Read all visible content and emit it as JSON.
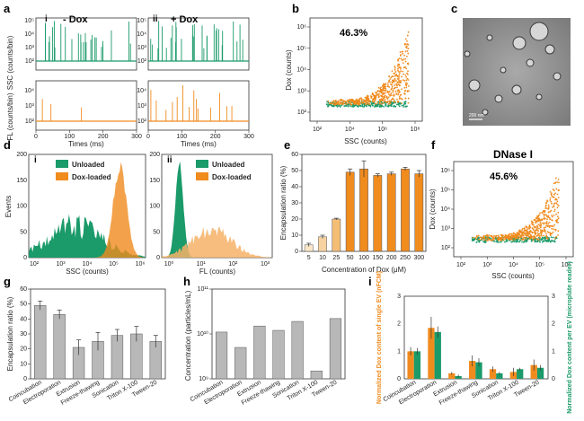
{
  "colors": {
    "green": "#1b9a6a",
    "orange": "#f08b1e",
    "lightorange": "#f6c98c",
    "gray": "#b8b8b8",
    "orange_text": "#f08b1e",
    "green_text": "#1b9a6a"
  },
  "panels": {
    "a": {
      "label": "a",
      "sub_i": "i",
      "sub_ii": "ii",
      "cond_i": "- Dox",
      "cond_ii": "+ Dox",
      "ylabel_top": "SSC (counts/bin)",
      "ylabel_bottom": "FL (counts/bin)",
      "xlabel": "Times (ms)",
      "xticks": [
        "0",
        "100",
        "200",
        "300"
      ],
      "yticks_top": [
        "10²",
        "10³",
        "10⁴",
        "10⁵"
      ],
      "yticks_bottom": [
        "10²",
        "10³",
        "10⁴"
      ]
    },
    "b": {
      "label": "b",
      "percent": "46.3%",
      "xlabel": "SSC (counts)",
      "ylabel": "Dox (counts)",
      "xticks": [
        "10²",
        "10⁴",
        "10⁶",
        "10⁸"
      ],
      "yticks": [
        "10²",
        "10³",
        "10⁴",
        "10⁵",
        "10⁶"
      ]
    },
    "c": {
      "label": "c",
      "scale": "200 nm"
    },
    "d": {
      "label": "d",
      "sub_i": "i",
      "sub_ii": "ii",
      "legend_unloaded": "Unloaded",
      "legend_loaded": "Dox-loaded",
      "ylabel": "Events",
      "xlabel_i": "SSC (counts)",
      "xlabel_ii": "FL (counts)",
      "yticks": [
        "0",
        "50",
        "100",
        "150",
        "200"
      ],
      "xticks_i": [
        "10²",
        "10³",
        "10⁴",
        "10⁵",
        "10⁶"
      ],
      "xticks_ii": [
        "10⁰",
        "10¹",
        "10²",
        "10³"
      ]
    },
    "e": {
      "label": "e",
      "ylabel": "Encapsulation ratio (%)",
      "xlabel": "Concentration of Dox (μM)",
      "yticks": [
        "0",
        "10",
        "20",
        "30",
        "40",
        "50",
        "60"
      ]
    },
    "f": {
      "label": "f",
      "title": "DNase I",
      "percent": "45.6%",
      "xlabel": "SSC (counts)",
      "ylabel": "Dox (counts)",
      "xticks": [
        "10²",
        "10³",
        "10⁴",
        "10⁵",
        "10⁶"
      ],
      "yticks": [
        "10²",
        "10³",
        "10⁴",
        "10⁵",
        "10⁶"
      ]
    },
    "g": {
      "label": "g",
      "ylabel": "Encapsulation ratio (%)",
      "yticks": [
        "0",
        "10",
        "20",
        "30",
        "40",
        "50",
        "60"
      ]
    },
    "h": {
      "label": "h",
      "ylabel": "Concentration (particles/mL)",
      "yticks": [
        "10⁹",
        "10¹⁰",
        "10¹¹"
      ]
    },
    "i": {
      "label": "i",
      "ylabel_left": "Normalized Dox content of single EV (nFCM)",
      "ylabel_right": "Normalized Dox content per EV (microplate reader)",
      "yticks": [
        "0",
        "1",
        "2",
        "3"
      ]
    }
  },
  "chart_data": [
    {
      "panel": "a",
      "type": "line",
      "subpanel": "i",
      "series": [
        {
          "name": "",
          "note": "SSC trace, sparse spikes up to ~10⁵"
        },
        {
          "name": "",
          "note": "FL trace, flat baseline"
        }
      ],
      "xlim": [
        0,
        300
      ]
    },
    {
      "panel": "a",
      "type": "line",
      "subpanel": "ii",
      "xlim": [
        0,
        300
      ]
    },
    {
      "panel": "b",
      "type": "scatter",
      "xlog": true,
      "ylog": true,
      "xlim": [
        100,
        100000000
      ],
      "ylim": [
        100,
        1000000
      ]
    },
    {
      "panel": "d",
      "type": "area",
      "subpanel": "i",
      "ylim": [
        0,
        200
      ]
    },
    {
      "panel": "d",
      "type": "area",
      "subpanel": "ii",
      "ylim": [
        0,
        200
      ]
    },
    {
      "panel": "e",
      "type": "bar",
      "categories": [
        "5",
        "10",
        "25",
        "50",
        "100",
        "150",
        "200",
        "250",
        "300"
      ],
      "values": [
        4,
        9,
        20,
        49,
        51,
        47,
        48,
        51,
        48
      ],
      "errors": [
        1,
        1,
        0.5,
        2,
        5,
        1,
        1,
        1,
        2
      ],
      "ylim": [
        0,
        60
      ]
    },
    {
      "panel": "f",
      "type": "scatter",
      "xlog": true,
      "ylog": true,
      "xlim": [
        100,
        1000000
      ],
      "ylim": [
        100,
        1000000
      ]
    },
    {
      "panel": "g",
      "type": "bar",
      "categories": [
        "Coincubation",
        "Electroporation",
        "Extrusion",
        "Freeze-thawing",
        "Sonication",
        "Triton X-100",
        "Tween-20"
      ],
      "values": [
        49,
        43,
        21,
        25,
        29,
        30,
        25
      ],
      "errors": [
        3,
        3,
        5,
        6,
        4,
        5,
        4
      ],
      "ylim": [
        0,
        60
      ]
    },
    {
      "panel": "h",
      "type": "bar",
      "ylog": true,
      "categories": [
        "Coincubation",
        "Electroporation",
        "Extrusion",
        "Freeze-thawing",
        "Sonication",
        "Triton X-100",
        "Tween-20"
      ],
      "values": [
        11000000000,
        5000000000,
        15000000000,
        12000000000,
        19000000000,
        1500000000,
        22000000000
      ],
      "ylim": [
        1000000000,
        100000000000
      ]
    },
    {
      "panel": "i",
      "type": "bar",
      "categories": [
        "Coincubation",
        "Electroporation",
        "Extrusion",
        "Freeze-thawing",
        "Sonication",
        "Triton X-100",
        "Tween-20"
      ],
      "series": [
        {
          "name": "",
          "values": [
            1.0,
            1.85,
            0.2,
            0.65,
            0.35,
            0.25,
            0.5
          ],
          "errors": [
            0.15,
            0.4,
            0.05,
            0.2,
            0.1,
            0.15,
            0.2
          ]
        },
        {
          "name": "",
          "values": [
            1.0,
            1.7,
            0.1,
            0.6,
            0.2,
            0.35,
            0.4
          ],
          "errors": [
            0.12,
            0.2,
            0.05,
            0.15,
            0.05,
            0.05,
            0.1
          ]
        }
      ],
      "ylim": [
        0,
        3
      ]
    }
  ]
}
